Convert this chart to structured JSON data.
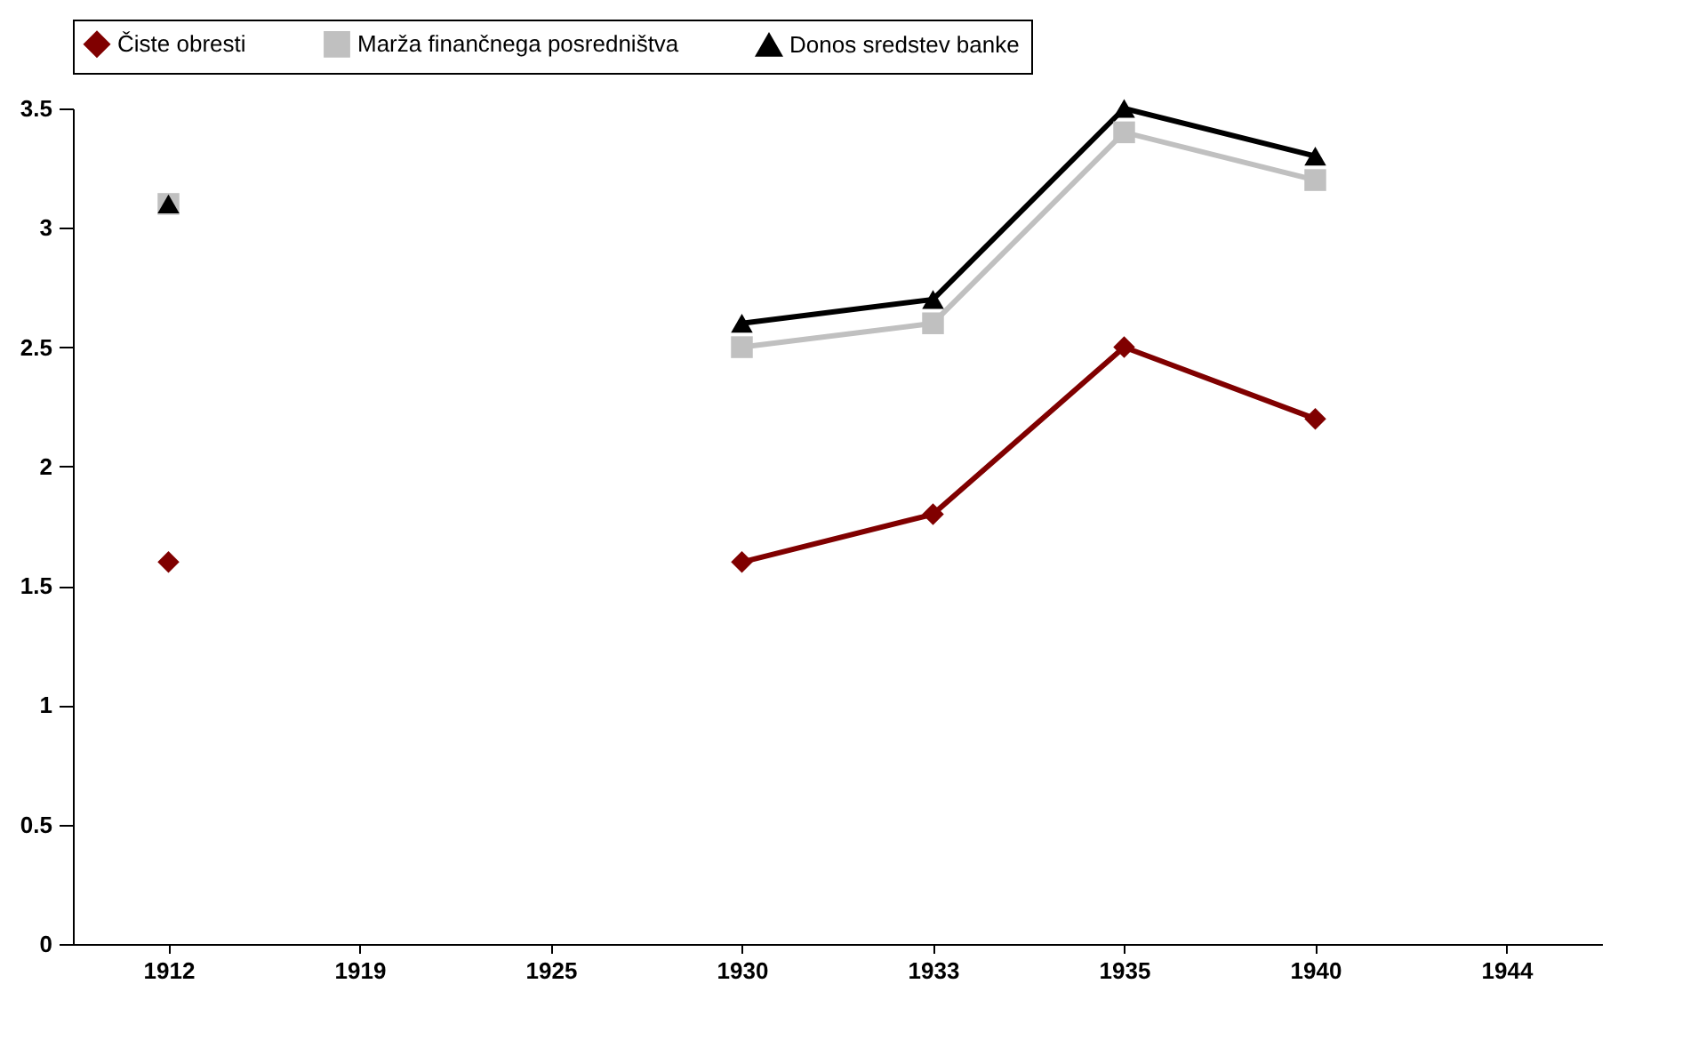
{
  "chart_data": {
    "type": "line",
    "categories": [
      "1912",
      "1919",
      "1925",
      "1930",
      "1933",
      "1935",
      "1940",
      "1944"
    ],
    "series": [
      {
        "name": "Čiste obresti",
        "color": "#800000",
        "marker": "diamond",
        "values": [
          1.6,
          null,
          null,
          1.6,
          1.8,
          2.5,
          2.2,
          null
        ]
      },
      {
        "name": "Marža finančnega posredništva",
        "color": "#c0c0c0",
        "marker": "square",
        "values": [
          3.1,
          null,
          null,
          2.5,
          2.6,
          3.4,
          3.2,
          null
        ]
      },
      {
        "name": "Donos sredstev banke",
        "color": "#000000",
        "marker": "triangle",
        "values": [
          3.1,
          null,
          null,
          2.6,
          2.7,
          3.5,
          3.3,
          null
        ]
      }
    ],
    "ylim": [
      0,
      3.5
    ],
    "yticks": [
      0,
      0.5,
      1,
      1.5,
      2,
      2.5,
      3,
      3.5
    ],
    "grid": false,
    "legend": "top"
  }
}
